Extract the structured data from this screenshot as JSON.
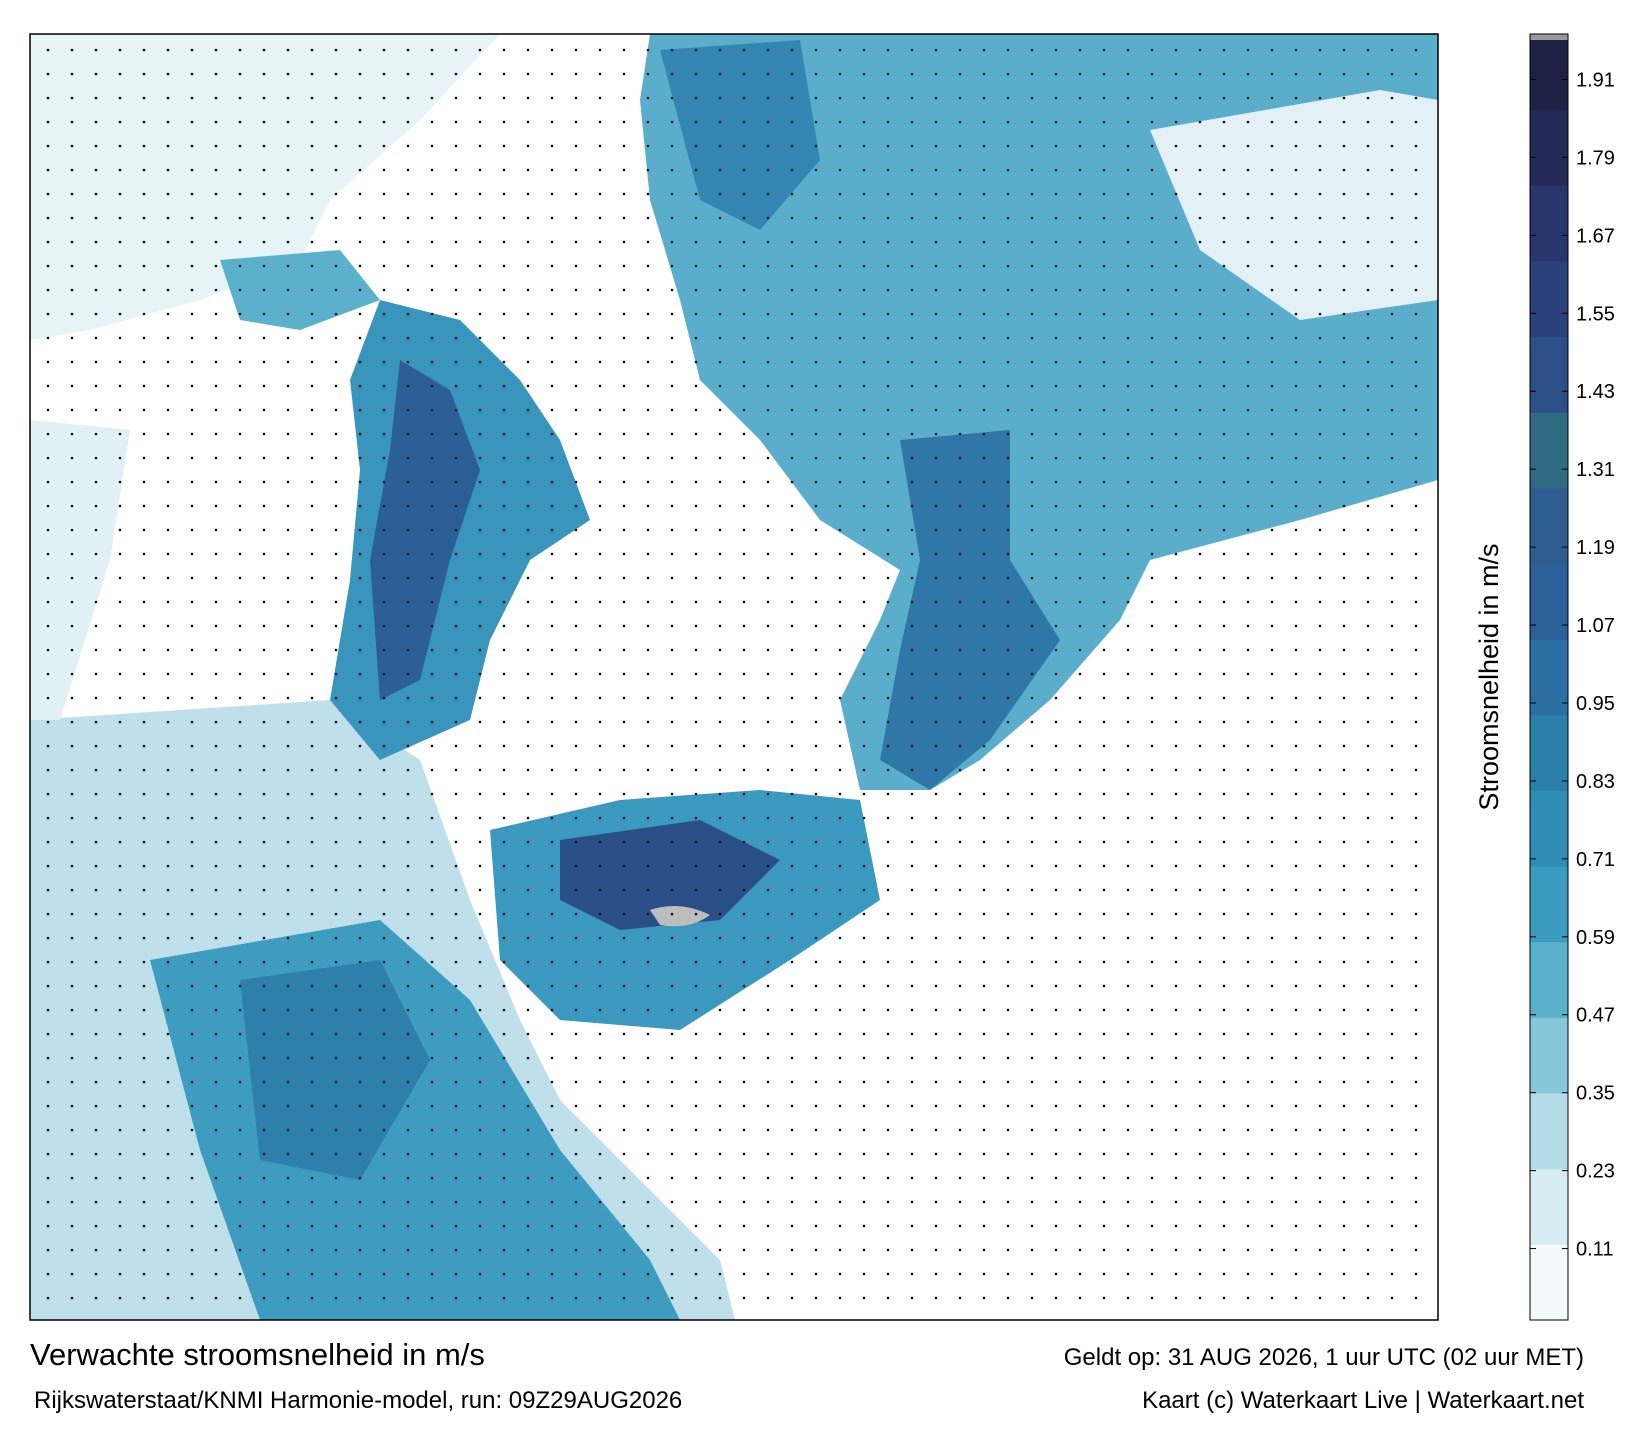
{
  "map": {
    "title": "Verwachte stroomsnelheid in m/s",
    "subtitle": "Rijkswaterstaat/KNMI Harmonie-model, run: 09Z29AUG2026",
    "valid": "Geldt op: 31 AUG 2026, 1 uur UTC (02 uur MET)",
    "credit": "Kaart (c) Waterkaart Live | Waterkaart.net",
    "colorbar": {
      "label": "Stroomsnelheid in m/s",
      "lim": [
        0,
        1.98
      ],
      "ticks": [
        0.11,
        0.23,
        0.35,
        0.47,
        0.59,
        0.71,
        0.83,
        0.95,
        1.07,
        1.19,
        1.31,
        1.43,
        1.55,
        1.67,
        1.79,
        1.91
      ],
      "colors": [
        "#f4f9fb",
        "#d6ecf2",
        "#b3dbe8",
        "#86c7db",
        "#5bb0cc",
        "#3a9cbf",
        "#2f8cb4",
        "#2d7fab",
        "#2c6fa3",
        "#2b6098",
        "#2e5c8f",
        "#2e6b82",
        "#2b4f86",
        "#2a417a",
        "#28356c",
        "#232a58",
        "#1d2245"
      ]
    }
  }
}
